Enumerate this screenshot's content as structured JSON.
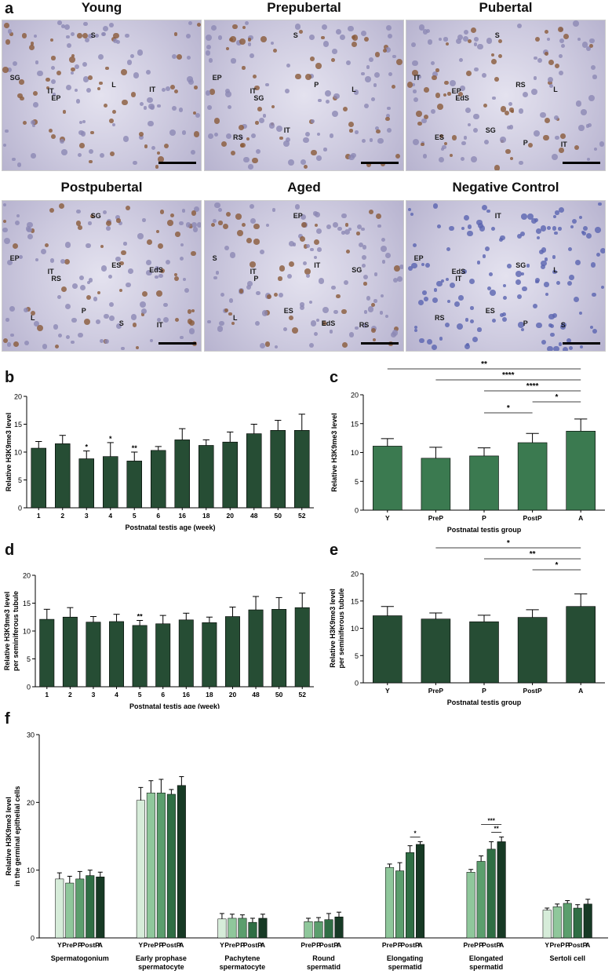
{
  "panel_letters": {
    "a": "a",
    "b": "b",
    "c": "c",
    "d": "d",
    "e": "e",
    "f": "f"
  },
  "micrographs": [
    {
      "title": "Young",
      "labels": [
        "S",
        "SG",
        "IT",
        "EP",
        "L",
        "IT"
      ]
    },
    {
      "title": "Prepubertal",
      "labels": [
        "S",
        "EP",
        "IT",
        "SG",
        "P",
        "L",
        "RS",
        "IT"
      ]
    },
    {
      "title": "Pubertal",
      "labels": [
        "S",
        "IT",
        "EP",
        "EdS",
        "RS",
        "L",
        "ES",
        "SG",
        "P",
        "IT"
      ]
    },
    {
      "title": "Postpubertal",
      "labels": [
        "SG",
        "EP",
        "IT",
        "RS",
        "ES",
        "EdS",
        "L",
        "P",
        "S",
        "IT"
      ]
    },
    {
      "title": "Aged",
      "labels": [
        "EP",
        "S",
        "IT",
        "P",
        "IT",
        "SG",
        "L",
        "ES",
        "EdS",
        "RS"
      ]
    },
    {
      "title": "Negative Control",
      "labels": [
        "IT",
        "EP",
        "EdS",
        "IT",
        "SG",
        "L",
        "RS",
        "ES",
        "P",
        "S"
      ]
    }
  ],
  "colors": {
    "dark_bar": "#264d34",
    "mid_bar": "#3b7a50",
    "light1": "#d6ecd9",
    "light2": "#8fc79b",
    "light3": "#5b9e6d",
    "light4": "#2f6e44",
    "light5": "#173a25"
  },
  "chart_data": [
    {
      "id": "b",
      "type": "bar",
      "categories": [
        "1",
        "2",
        "3",
        "4",
        "5",
        "6",
        "16",
        "18",
        "20",
        "48",
        "50",
        "52"
      ],
      "values": [
        10.7,
        11.5,
        8.8,
        9.2,
        8.4,
        10.3,
        12.2,
        11.2,
        11.8,
        13.3,
        13.9,
        13.9
      ],
      "errors": [
        1.2,
        1.5,
        1.4,
        2.5,
        1.6,
        0.7,
        2.0,
        1.0,
        1.8,
        1.7,
        1.8,
        2.9
      ],
      "annotations": [
        "",
        "",
        "*",
        "*",
        "**",
        "",
        "",
        "",
        "",
        "",
        "",
        ""
      ],
      "xlabel": "Postnatal testis age (week)",
      "ylabel": "Relative H3K9me3 level",
      "ylim": [
        0,
        20
      ],
      "yticks": [
        0,
        5,
        10,
        15,
        20
      ]
    },
    {
      "id": "c",
      "type": "bar",
      "categories": [
        "Y",
        "PreP",
        "P",
        "PostP",
        "A"
      ],
      "values": [
        11.1,
        9.0,
        9.4,
        11.7,
        13.7
      ],
      "errors": [
        1.3,
        1.9,
        1.4,
        1.6,
        2.1
      ],
      "significance": [
        {
          "from": 0,
          "to": 4,
          "label": "**"
        },
        {
          "from": 1,
          "to": 4,
          "label": "****"
        },
        {
          "from": 2,
          "to": 4,
          "label": "****"
        },
        {
          "from": 3,
          "to": 4,
          "label": "*"
        },
        {
          "from": 2,
          "to": 3,
          "label": "*"
        }
      ],
      "xlabel": "Postnatal testis group",
      "ylabel": "Relative H3K9me3 level",
      "ylim": [
        0,
        20
      ],
      "yticks": [
        0,
        5,
        10,
        15,
        20
      ]
    },
    {
      "id": "d",
      "type": "bar",
      "categories": [
        "1",
        "2",
        "3",
        "4",
        "5",
        "6",
        "16",
        "18",
        "20",
        "48",
        "50",
        "52"
      ],
      "values": [
        12.1,
        12.5,
        11.6,
        11.7,
        11.0,
        11.3,
        12.0,
        11.5,
        12.6,
        13.8,
        13.9,
        14.2
      ],
      "errors": [
        1.8,
        1.7,
        1.0,
        1.3,
        0.9,
        1.5,
        1.2,
        1.0,
        1.7,
        2.4,
        2.1,
        2.6
      ],
      "annotations": [
        "",
        "",
        "",
        "",
        "**",
        "",
        "",
        "",
        "",
        "",
        "",
        ""
      ],
      "xlabel": "Postnatal testis age (week)",
      "ylabel": "Relative H3K9me3 level per seminiferous tubule",
      "ylim": [
        0,
        20
      ],
      "yticks": [
        0,
        5,
        10,
        15,
        20
      ]
    },
    {
      "id": "e",
      "type": "bar",
      "categories": [
        "Y",
        "PreP",
        "P",
        "PostP",
        "A"
      ],
      "values": [
        12.3,
        11.7,
        11.2,
        12.0,
        14.0
      ],
      "errors": [
        1.7,
        1.1,
        1.2,
        1.4,
        2.3
      ],
      "significance": [
        {
          "from": 1,
          "to": 4,
          "label": "*"
        },
        {
          "from": 2,
          "to": 4,
          "label": "**"
        },
        {
          "from": 3,
          "to": 4,
          "label": "*"
        }
      ],
      "xlabel": "Postnatal testis group",
      "ylabel": "Relative H3K9me3 level per seminiferous tubule",
      "ylim": [
        0,
        20
      ],
      "yticks": [
        0,
        5,
        10,
        15,
        20
      ]
    },
    {
      "id": "f",
      "type": "bar",
      "ylabel": "Relative H3K9me3 level in the germinal epithelial cells",
      "ylim": [
        0,
        30
      ],
      "yticks": [
        0,
        10,
        20,
        30
      ],
      "groups": [
        {
          "name": "Spermatogonium",
          "categories": [
            "Y",
            "PreP",
            "P",
            "PostP",
            "A"
          ],
          "values": [
            8.7,
            8.1,
            8.7,
            9.2,
            9.0
          ],
          "errors": [
            0.9,
            1.0,
            1.1,
            0.8,
            0.7
          ],
          "shades": [
            0,
            1,
            2,
            3,
            4
          ]
        },
        {
          "name": "Early prophase spermatocyte",
          "categories": [
            "Y",
            "PreP",
            "P",
            "PostP",
            "A"
          ],
          "values": [
            20.3,
            21.4,
            21.4,
            21.2,
            22.5
          ],
          "errors": [
            1.9,
            1.8,
            2.0,
            0.7,
            1.3
          ],
          "shades": [
            0,
            1,
            2,
            3,
            4
          ]
        },
        {
          "name": "Pachytene spermatocyte",
          "categories": [
            "Y",
            "PreP",
            "P",
            "PostP",
            "A"
          ],
          "values": [
            2.8,
            2.9,
            2.9,
            2.3,
            2.9
          ],
          "errors": [
            0.8,
            0.6,
            0.5,
            0.6,
            0.6
          ],
          "shades": [
            0,
            1,
            2,
            3,
            4
          ]
        },
        {
          "name": "Round spermatid",
          "categories": [
            "PreP",
            "P",
            "PostP",
            "A"
          ],
          "values": [
            2.4,
            2.4,
            2.7,
            3.1
          ],
          "errors": [
            0.5,
            0.6,
            0.9,
            0.7
          ],
          "shades": [
            1,
            2,
            3,
            4
          ]
        },
        {
          "name": "Elongating spermatid",
          "categories": [
            "PreP",
            "P",
            "PostP",
            "A"
          ],
          "values": [
            10.4,
            9.9,
            12.6,
            13.8
          ],
          "errors": [
            0.5,
            1.2,
            1.0,
            0.4
          ],
          "shades": [
            1,
            2,
            3,
            4
          ],
          "significance": [
            {
              "from": 2,
              "to": 3,
              "label": "*"
            }
          ]
        },
        {
          "name": "Elongated spermatid",
          "categories": [
            "PreP",
            "P",
            "PostP",
            "A"
          ],
          "values": [
            9.7,
            11.3,
            13.1,
            14.2
          ],
          "errors": [
            0.4,
            0.8,
            1.1,
            0.7
          ],
          "shades": [
            1,
            2,
            3,
            4
          ],
          "significance": [
            {
              "from": 1,
              "to": 3,
              "label": "***"
            },
            {
              "from": 2,
              "to": 3,
              "label": "**"
            }
          ]
        },
        {
          "name": "Sertoli cell",
          "categories": [
            "Y",
            "PreP",
            "P",
            "PostP",
            "A"
          ],
          "values": [
            4.1,
            4.6,
            5.1,
            4.4,
            5.0
          ],
          "errors": [
            0.3,
            0.4,
            0.4,
            0.5,
            0.7
          ],
          "shades": [
            0,
            1,
            2,
            3,
            4
          ]
        }
      ]
    }
  ]
}
